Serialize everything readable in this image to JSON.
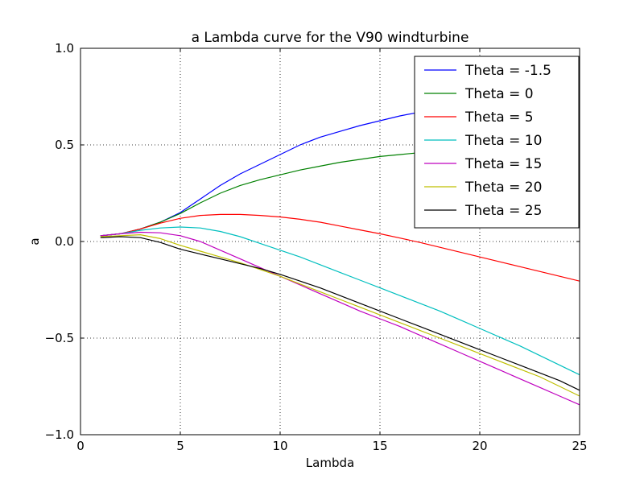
{
  "chart_data": {
    "type": "line",
    "title": "a Lambda curve for the V90 windturbine",
    "xlabel": "Lambda",
    "ylabel": "a",
    "xlim": [
      0,
      25
    ],
    "ylim": [
      -1.0,
      1.0
    ],
    "xticks": [
      0,
      5,
      10,
      15,
      20,
      25
    ],
    "xtick_labels": [
      "0",
      "5",
      "10",
      "15",
      "20",
      "25"
    ],
    "yticks": [
      -1.0,
      -0.5,
      0.0,
      0.5,
      1.0
    ],
    "ytick_labels": [
      "−1.0",
      "−0.5",
      "0.0",
      "0.5",
      "1.0"
    ],
    "grid": true,
    "legend_position": "top-right",
    "x": [
      1,
      2,
      3,
      4,
      5,
      6,
      7,
      8,
      9,
      10,
      11,
      12,
      13,
      14,
      15,
      16,
      17,
      18,
      19,
      20,
      21,
      22,
      23,
      24,
      25
    ],
    "series": [
      {
        "name": "Theta = -1.5",
        "color": "#0000ff",
        "values": [
          0.03,
          0.04,
          0.065,
          0.1,
          0.15,
          0.22,
          0.29,
          0.35,
          0.4,
          0.45,
          0.5,
          0.54,
          0.57,
          0.6,
          0.625,
          0.65,
          0.67,
          0.69,
          0.71,
          0.73,
          0.745,
          0.76,
          0.775,
          0.79,
          0.8
        ]
      },
      {
        "name": "Theta = 0",
        "color": "#008000",
        "values": [
          0.03,
          0.04,
          0.065,
          0.1,
          0.145,
          0.2,
          0.25,
          0.29,
          0.32,
          0.345,
          0.37,
          0.39,
          0.41,
          0.425,
          0.44,
          0.45,
          0.46,
          0.47,
          0.475,
          0.48,
          0.485,
          0.49,
          0.493,
          0.495,
          0.497
        ]
      },
      {
        "name": "Theta = 5",
        "color": "#ff0000",
        "values": [
          0.03,
          0.04,
          0.065,
          0.095,
          0.12,
          0.135,
          0.14,
          0.14,
          0.135,
          0.127,
          0.115,
          0.1,
          0.08,
          0.06,
          0.04,
          0.018,
          -0.005,
          -0.03,
          -0.055,
          -0.08,
          -0.105,
          -0.13,
          -0.155,
          -0.18,
          -0.205
        ]
      },
      {
        "name": "Theta = 10",
        "color": "#00bfbf",
        "values": [
          0.03,
          0.04,
          0.058,
          0.07,
          0.075,
          0.07,
          0.052,
          0.025,
          -0.01,
          -0.045,
          -0.08,
          -0.12,
          -0.16,
          -0.2,
          -0.24,
          -0.28,
          -0.32,
          -0.36,
          -0.405,
          -0.45,
          -0.495,
          -0.54,
          -0.59,
          -0.64,
          -0.69
        ]
      },
      {
        "name": "Theta = 15",
        "color": "#bf00bf",
        "values": [
          0.03,
          0.04,
          0.048,
          0.045,
          0.03,
          0.0,
          -0.045,
          -0.09,
          -0.135,
          -0.18,
          -0.225,
          -0.27,
          -0.315,
          -0.36,
          -0.4,
          -0.44,
          -0.485,
          -0.53,
          -0.575,
          -0.62,
          -0.665,
          -0.71,
          -0.755,
          -0.8,
          -0.845
        ]
      },
      {
        "name": "Theta = 20",
        "color": "#bfbf00",
        "values": [
          0.025,
          0.03,
          0.035,
          0.015,
          -0.02,
          -0.05,
          -0.08,
          -0.11,
          -0.145,
          -0.18,
          -0.22,
          -0.26,
          -0.3,
          -0.34,
          -0.38,
          -0.42,
          -0.46,
          -0.5,
          -0.54,
          -0.58,
          -0.62,
          -0.66,
          -0.7,
          -0.75,
          -0.8
        ]
      },
      {
        "name": "Theta = 25",
        "color": "#000000",
        "values": [
          0.02,
          0.025,
          0.02,
          -0.005,
          -0.04,
          -0.065,
          -0.09,
          -0.115,
          -0.14,
          -0.17,
          -0.205,
          -0.24,
          -0.28,
          -0.32,
          -0.36,
          -0.4,
          -0.44,
          -0.48,
          -0.52,
          -0.56,
          -0.6,
          -0.64,
          -0.68,
          -0.72,
          -0.77
        ]
      }
    ]
  }
}
